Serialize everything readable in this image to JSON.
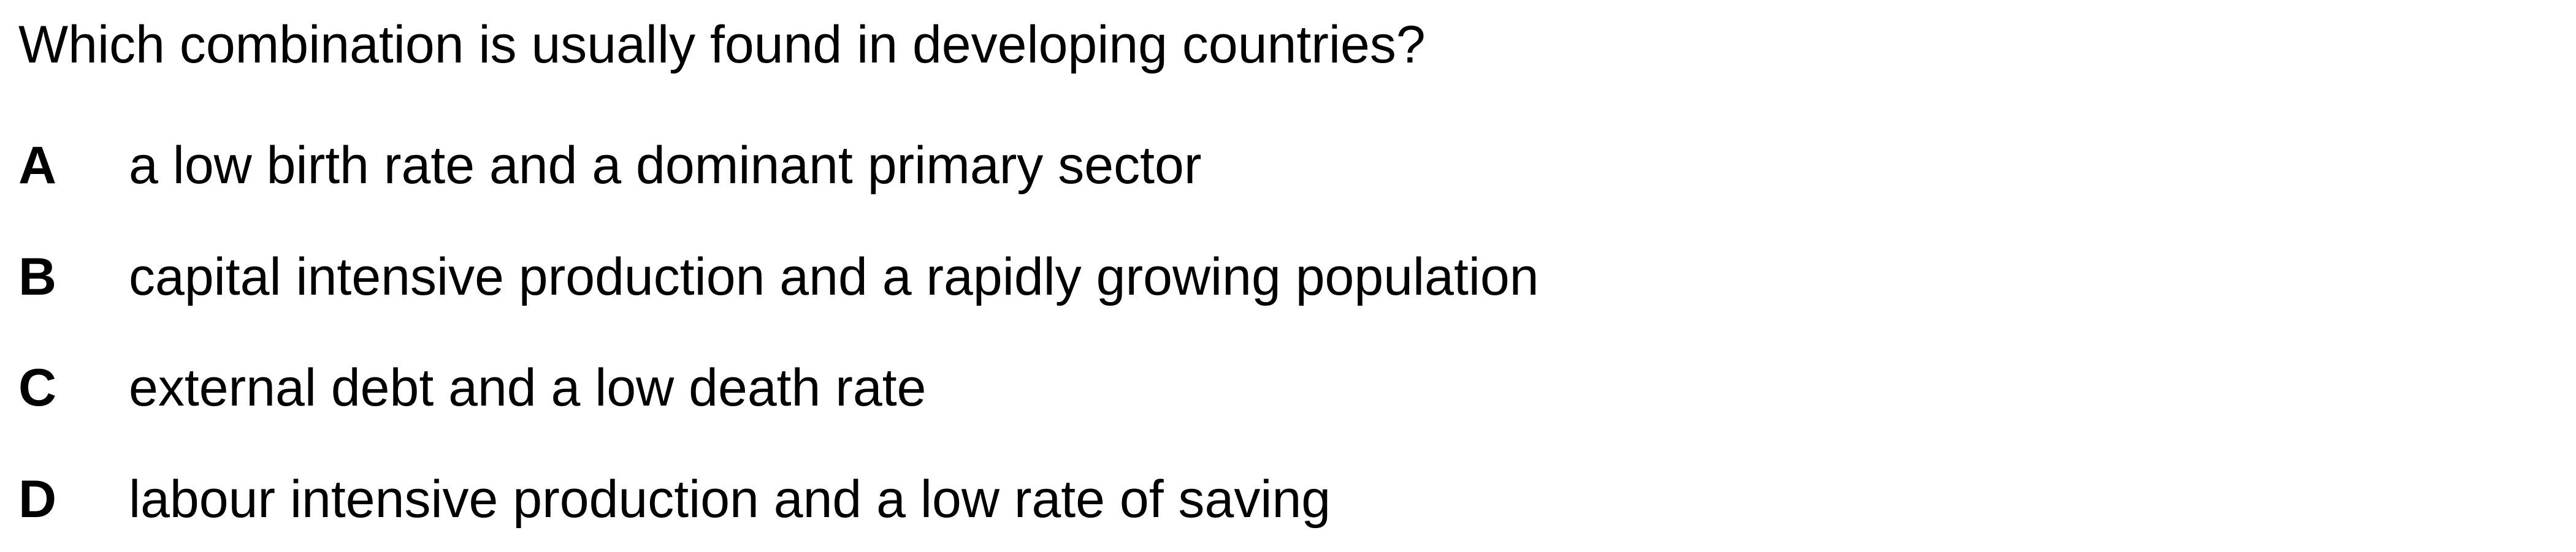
{
  "question": {
    "text": "Which combination is usually found in developing countries?"
  },
  "options": [
    {
      "letter": "A",
      "text": "a low birth rate and a dominant primary sector"
    },
    {
      "letter": "B",
      "text": "capital intensive production and a rapidly growing population"
    },
    {
      "letter": "C",
      "text": "external debt and a low death rate"
    },
    {
      "letter": "D",
      "text": "labour intensive production and a low rate of saving"
    }
  ]
}
